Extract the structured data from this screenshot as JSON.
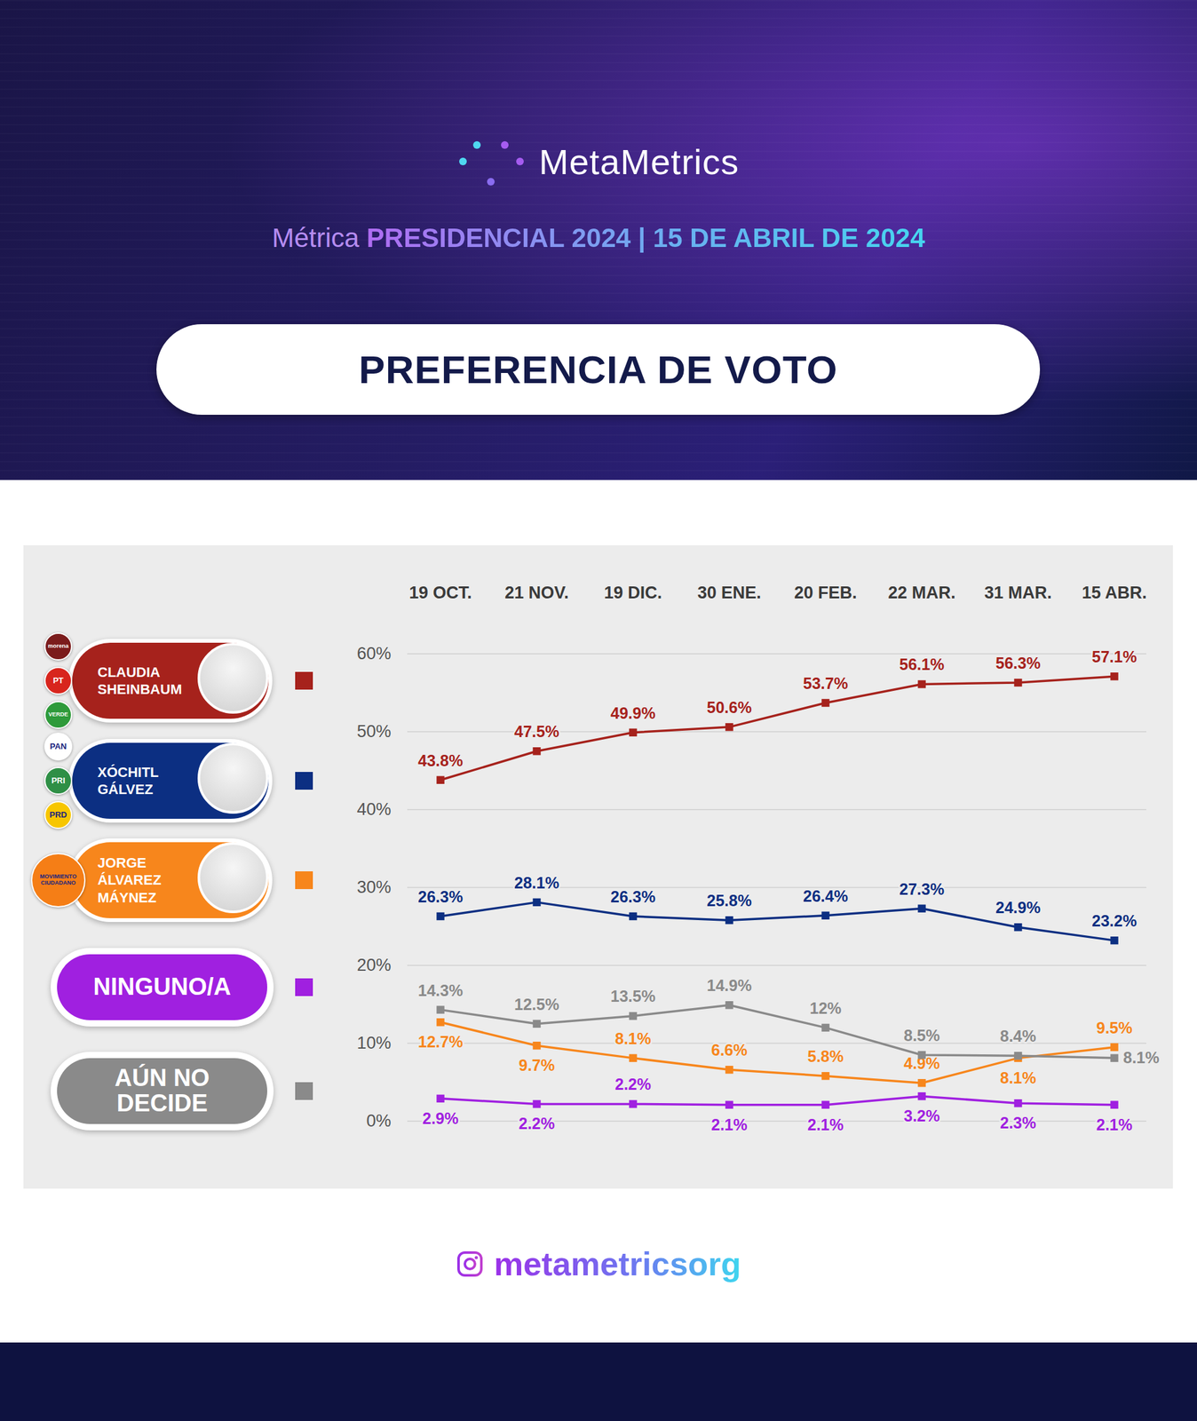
{
  "brand": "MetaMetrics",
  "subtitle": "Métrica PRESIDENCIAL 2024 | 15 DE ABRIL DE 2024",
  "footer": "metametricsorg",
  "chart_data": {
    "type": "line",
    "title": "PREFERENCIA DE VOTO",
    "categories": [
      "19 OCT.",
      "21 NOV.",
      "19 DIC.",
      "30 ENE.",
      "20 FEB.",
      "22 MAR.",
      "31 MAR.",
      "15 ABR."
    ],
    "series": [
      {
        "name": "CLAUDIA SHEINBAUM",
        "color": "#a6221c",
        "parties": [
          {
            "name": "morena",
            "color": "#7b1c1c"
          },
          {
            "name": "PT",
            "color": "#d8251d"
          },
          {
            "name": "VERDE",
            "color": "#2e9a3a"
          }
        ],
        "values": [
          43.8,
          47.5,
          49.9,
          50.6,
          53.7,
          56.1,
          56.3,
          57.1
        ],
        "value_labels": [
          "43.8%",
          "47.5%",
          "49.9%",
          "50.6%",
          "53.7%",
          "56.1%",
          "56.3%",
          "57.1%"
        ]
      },
      {
        "name": "XÓCHITL GÁLVEZ",
        "color": "#0c2f82",
        "parties": [
          {
            "name": "PAN",
            "color": "#ffffff"
          },
          {
            "name": "PRI",
            "color": "#2f8f46"
          },
          {
            "name": "PRD",
            "color": "#f7c600"
          }
        ],
        "values": [
          26.3,
          28.1,
          26.3,
          25.8,
          26.4,
          27.3,
          24.9,
          23.2
        ],
        "value_labels": [
          "26.3%",
          "28.1%",
          "26.3%",
          "25.8%",
          "26.4%",
          "27.3%",
          "24.9%",
          "23.2%"
        ]
      },
      {
        "name": "JORGE ÁLVAREZ MÁYNEZ",
        "color": "#f7861c",
        "parties": [
          {
            "name": "MOVIMIENTO CIUDADANO",
            "color": "#f57e16"
          }
        ],
        "values": [
          12.7,
          9.7,
          8.1,
          6.6,
          5.8,
          4.9,
          8.1,
          9.5
        ],
        "value_labels": [
          "12.7%",
          "9.7%",
          "8.1%",
          "6.6%",
          "5.8%",
          "4.9%",
          "8.1%",
          "9.5%"
        ]
      },
      {
        "name": "NINGUNO/A",
        "color": "#a020e0",
        "values": [
          2.9,
          2.2,
          2.2,
          2.1,
          2.1,
          3.2,
          2.3,
          2.1
        ],
        "value_labels": [
          "2.9%",
          "2.2%",
          "2.2%",
          "2.1%",
          "2.1%",
          "3.2%",
          "2.3%",
          "2.1%"
        ]
      },
      {
        "name": "AÚN NO DECIDE",
        "color": "#8a8a8a",
        "values": [
          14.3,
          12.5,
          13.5,
          14.9,
          12,
          8.5,
          8.4,
          8.1
        ],
        "value_labels": [
          "14.3%",
          "12.5%",
          "13.5%",
          "14.9%",
          "12%",
          "8.5%",
          "8.4%",
          "8.1%"
        ]
      }
    ],
    "ylim": [
      0,
      60
    ],
    "yticks": [
      {
        "value": 0,
        "label": "0%"
      },
      {
        "value": 10,
        "label": "10%"
      },
      {
        "value": 20,
        "label": "20%"
      },
      {
        "value": 30,
        "label": "30%"
      },
      {
        "value": 40,
        "label": "40%"
      },
      {
        "value": 50,
        "label": "50%"
      },
      {
        "value": 60,
        "label": "60%"
      }
    ],
    "grid": true,
    "legend": "left",
    "marker": "square",
    "data_labels": true
  }
}
